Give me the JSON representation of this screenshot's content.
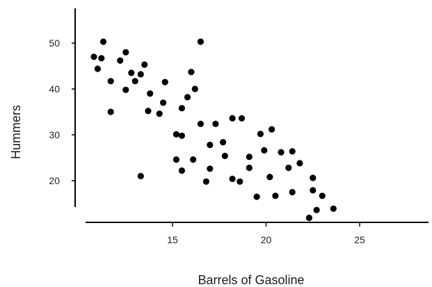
{
  "chart_data": {
    "type": "scatter",
    "title": "",
    "xlabel": "Barrels of Gasoline",
    "ylabel": "Hummers",
    "xlim": [
      10,
      28
    ],
    "ylim": [
      12,
      56
    ],
    "xticks": [
      15,
      20,
      25
    ],
    "yticks": [
      20,
      30,
      40,
      50
    ],
    "grid": false,
    "colors": {
      "points": "#000000",
      "axes": "#000000",
      "text": "#222222"
    },
    "series": [
      {
        "points": [
          [
            10.8,
            47.0
          ],
          [
            11.0,
            44.4
          ],
          [
            11.2,
            46.7
          ],
          [
            11.3,
            50.3
          ],
          [
            11.7,
            41.7
          ],
          [
            11.7,
            35.0
          ],
          [
            12.2,
            46.2
          ],
          [
            12.5,
            48.0
          ],
          [
            12.5,
            39.8
          ],
          [
            12.8,
            43.5
          ],
          [
            13.0,
            41.7
          ],
          [
            13.3,
            43.2
          ],
          [
            13.5,
            45.3
          ],
          [
            13.3,
            21.0
          ],
          [
            13.7,
            35.2
          ],
          [
            13.8,
            39.0
          ],
          [
            14.3,
            34.6
          ],
          [
            14.5,
            37.0
          ],
          [
            14.6,
            41.5
          ],
          [
            15.2,
            30.1
          ],
          [
            15.2,
            24.6
          ],
          [
            15.5,
            35.8
          ],
          [
            15.5,
            29.8
          ],
          [
            15.5,
            22.2
          ],
          [
            15.8,
            38.2
          ],
          [
            16.0,
            43.7
          ],
          [
            16.2,
            40.0
          ],
          [
            16.1,
            24.6
          ],
          [
            16.5,
            50.3
          ],
          [
            16.5,
            32.4
          ],
          [
            16.8,
            19.8
          ],
          [
            17.0,
            27.8
          ],
          [
            17.0,
            22.6
          ],
          [
            17.3,
            32.4
          ],
          [
            17.7,
            28.4
          ],
          [
            17.8,
            25.4
          ],
          [
            18.2,
            33.6
          ],
          [
            18.2,
            20.4
          ],
          [
            18.7,
            33.6
          ],
          [
            18.6,
            19.8
          ],
          [
            19.1,
            25.2
          ],
          [
            19.1,
            22.8
          ],
          [
            19.5,
            16.5
          ],
          [
            19.7,
            30.2
          ],
          [
            19.9,
            26.6
          ],
          [
            20.3,
            31.2
          ],
          [
            20.2,
            20.8
          ],
          [
            20.5,
            16.7
          ],
          [
            20.8,
            26.2
          ],
          [
            21.2,
            22.8
          ],
          [
            21.4,
            26.4
          ],
          [
            21.4,
            17.5
          ],
          [
            21.8,
            23.8
          ],
          [
            22.3,
            11.9
          ],
          [
            22.5,
            20.6
          ],
          [
            22.5,
            17.9
          ],
          [
            22.7,
            13.6
          ],
          [
            23.0,
            16.7
          ],
          [
            23.6,
            13.9
          ]
        ]
      }
    ]
  }
}
